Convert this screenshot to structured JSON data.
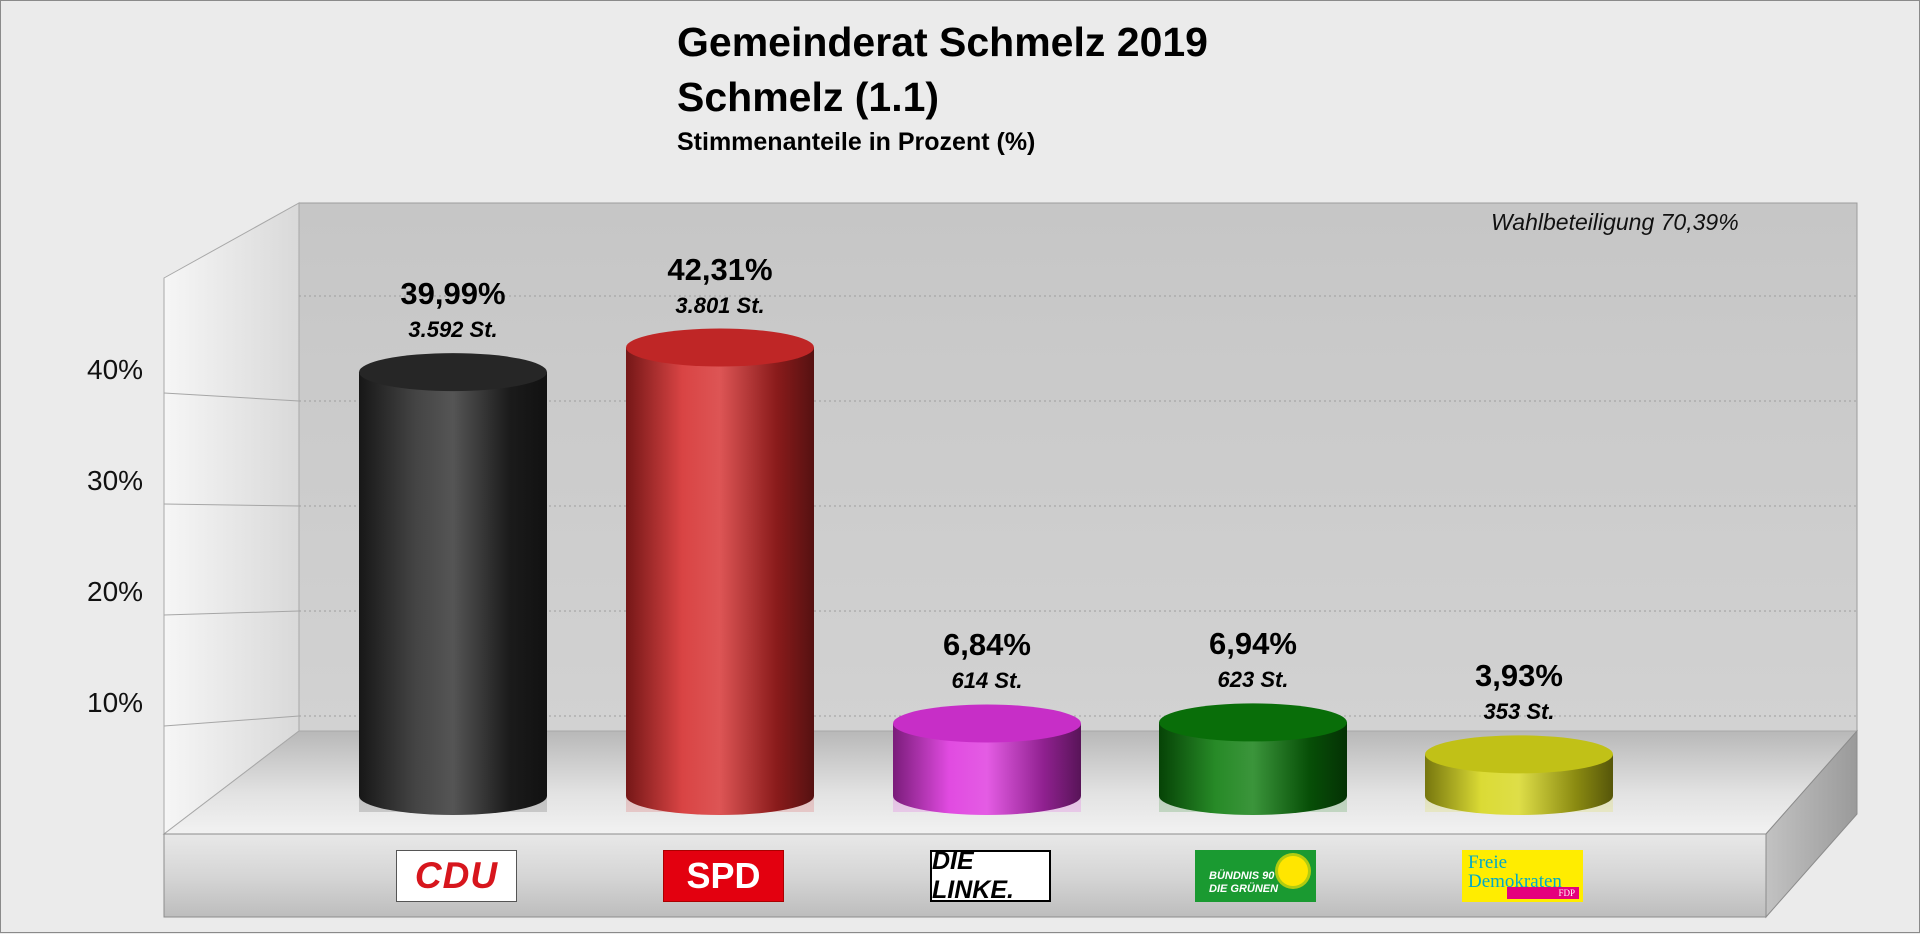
{
  "chart_data": {
    "type": "bar",
    "title": "Gemeinderat Schmelz 2019",
    "subtitle": "Schmelz (1.1)",
    "ylabel": "Stimmenanteile in Prozent (%)",
    "annotation": "Wahlbeteiligung 70,39%",
    "ylim": [
      0,
      50
    ],
    "yticks": [
      10,
      20,
      30,
      40
    ],
    "ytick_labels": [
      "10%",
      "20%",
      "30%",
      "40%"
    ],
    "grid": true,
    "categories": [
      "CDU",
      "SPD",
      "DIE LINKE.",
      "BÜNDNIS 90 DIE GRÜNEN",
      "Freie Demokraten FDP"
    ],
    "values": [
      39.99,
      42.31,
      6.84,
      6.94,
      3.93
    ],
    "value_labels": [
      "39,99%",
      "42,31%",
      "6,84%",
      "6,94%",
      "3,93%"
    ],
    "votes": [
      3592,
      3801,
      614,
      623,
      353
    ],
    "vote_labels": [
      "3.592 St.",
      "3.801 St.",
      "614 St.",
      "623 St.",
      "353 St."
    ],
    "colors": [
      "#2a2a2a",
      "#d42a2a",
      "#dd33dd",
      "#0a7a0a",
      "#d6d61a"
    ]
  },
  "logos": {
    "cdu": "CDU",
    "spd": "SPD",
    "linke": "DIE LINKE.",
    "gruene_line1": "BÜNDNIS 90",
    "gruene_line2": "DIE GRÜNEN",
    "fdp_line1": "Freie",
    "fdp_line2": "Demokraten",
    "fdp_tag": "FDP"
  }
}
